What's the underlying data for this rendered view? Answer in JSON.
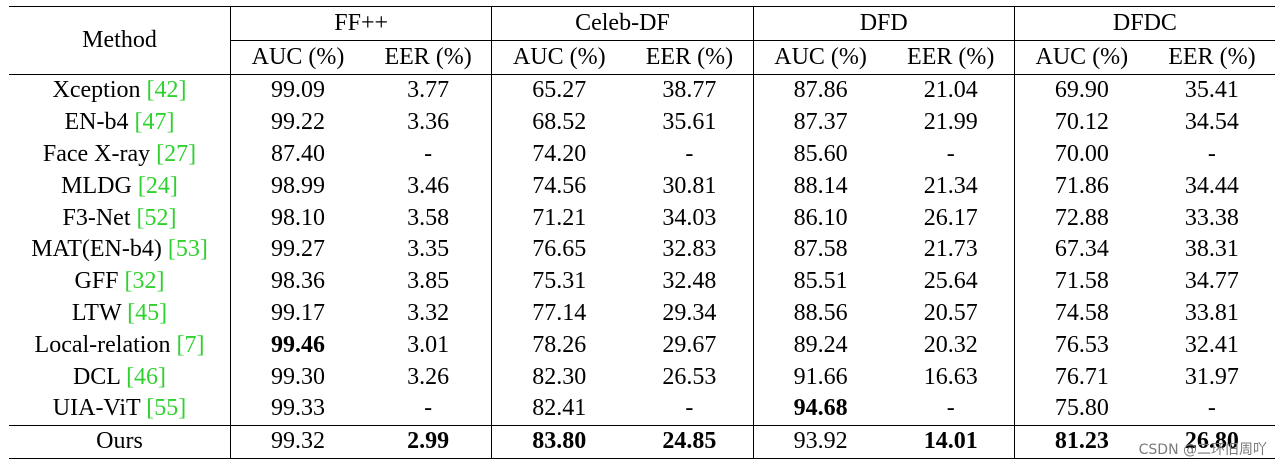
{
  "table": {
    "method_header": "Method",
    "datasets": [
      {
        "name": "FF++",
        "metrics": [
          "AUC (%)",
          "EER (%)"
        ]
      },
      {
        "name": "Celeb-DF",
        "metrics": [
          "AUC (%)",
          "EER (%)"
        ]
      },
      {
        "name": "DFD",
        "metrics": [
          "AUC (%)",
          "EER (%)"
        ]
      },
      {
        "name": "DFDC",
        "metrics": [
          "AUC (%)",
          "EER (%)"
        ]
      }
    ],
    "rows": [
      {
        "method": "Xception",
        "cite": "[42]",
        "values": [
          "99.09",
          "3.77",
          "65.27",
          "38.77",
          "87.86",
          "21.04",
          "69.90",
          "35.41"
        ],
        "bold": []
      },
      {
        "method": "EN-b4",
        "cite": "[47]",
        "values": [
          "99.22",
          "3.36",
          "68.52",
          "35.61",
          "87.37",
          "21.99",
          "70.12",
          "34.54"
        ],
        "bold": []
      },
      {
        "method": "Face X-ray",
        "cite": "[27]",
        "values": [
          "87.40",
          "-",
          "74.20",
          "-",
          "85.60",
          "-",
          "70.00",
          "-"
        ],
        "bold": []
      },
      {
        "method": "MLDG",
        "cite": "[24]",
        "values": [
          "98.99",
          "3.46",
          "74.56",
          "30.81",
          "88.14",
          "21.34",
          "71.86",
          "34.44"
        ],
        "bold": []
      },
      {
        "method": "F3-Net",
        "cite": "[52]",
        "values": [
          "98.10",
          "3.58",
          "71.21",
          "34.03",
          "86.10",
          "26.17",
          "72.88",
          "33.38"
        ],
        "bold": []
      },
      {
        "method": "MAT(EN-b4)",
        "cite": "[53]",
        "values": [
          "99.27",
          "3.35",
          "76.65",
          "32.83",
          "87.58",
          "21.73",
          "67.34",
          "38.31"
        ],
        "bold": []
      },
      {
        "method": "GFF",
        "cite": "[32]",
        "values": [
          "98.36",
          "3.85",
          "75.31",
          "32.48",
          "85.51",
          "25.64",
          "71.58",
          "34.77"
        ],
        "bold": []
      },
      {
        "method": "LTW",
        "cite": "[45]",
        "values": [
          "99.17",
          "3.32",
          "77.14",
          "29.34",
          "88.56",
          "20.57",
          "74.58",
          "33.81"
        ],
        "bold": []
      },
      {
        "method": "Local-relation",
        "cite": "[7]",
        "values": [
          "99.46",
          "3.01",
          "78.26",
          "29.67",
          "89.24",
          "20.32",
          "76.53",
          "32.41"
        ],
        "bold": [
          0
        ]
      },
      {
        "method": "DCL",
        "cite": "[46]",
        "values": [
          "99.30",
          "3.26",
          "82.30",
          "26.53",
          "91.66",
          "16.63",
          "76.71",
          "31.97"
        ],
        "bold": []
      },
      {
        "method": "UIA-ViT",
        "cite": "[55]",
        "values": [
          "99.33",
          "-",
          "82.41",
          "-",
          "94.68",
          "-",
          "75.80",
          "-"
        ],
        "bold": [
          4
        ]
      },
      {
        "method": "Ours",
        "cite": "",
        "values": [
          "99.32",
          "2.99",
          "83.80",
          "24.85",
          "93.92",
          "14.01",
          "81.23",
          "26.80"
        ],
        "bold": [
          1,
          2,
          3,
          5,
          6,
          7
        ]
      }
    ]
  },
  "watermark": "CSDN @二环旧周吖"
}
